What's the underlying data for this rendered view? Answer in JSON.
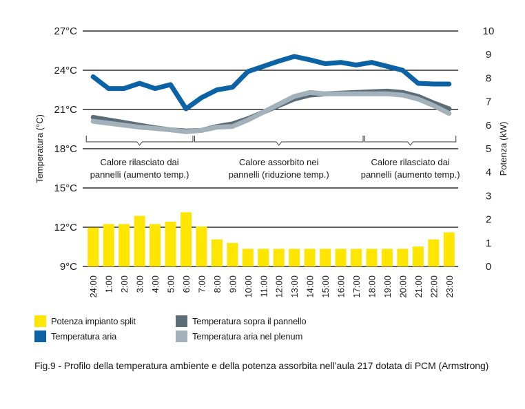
{
  "chart_data": {
    "type": "bar+line",
    "title": "",
    "caption": "Fig.9 - Profilo della temperatura ambiente e della potenza assorbita nell’aula 217 dotata di PCM (Armstrong)",
    "categories": [
      "24:00",
      "1:00",
      "2:00",
      "3:00",
      "4:00",
      "5:00",
      "6:00",
      "7:00",
      "8:00",
      "9:00",
      "10:00",
      "11:00",
      "12:00",
      "13:00",
      "14:00",
      "15:00",
      "16:00",
      "17:00",
      "18:00",
      "19:00",
      "20:00",
      "21:00",
      "22:00",
      "23:00"
    ],
    "y_left": {
      "label": "Temperatura (°C)",
      "range": [
        9,
        27
      ],
      "ticks": [
        27,
        24,
        21,
        18,
        15,
        12,
        9
      ],
      "tick_labels": [
        "27°C",
        "24°C",
        "21°C",
        "18°C",
        "15°C",
        "12°C",
        "9°C"
      ]
    },
    "y_right": {
      "label": "Potenza (kW)",
      "range": [
        0,
        10
      ],
      "ticks": [
        10,
        9,
        8,
        7,
        6,
        5,
        4,
        3,
        2,
        1,
        0
      ],
      "tick_labels": [
        "10",
        "9",
        "8",
        "7",
        "6",
        "5",
        "4",
        "3",
        "2",
        "1",
        "0"
      ]
    },
    "grid": true,
    "series": [
      {
        "name": "Potenza impianto split",
        "type": "bar",
        "axis": "right",
        "color": "#ffe600",
        "values": [
          1.65,
          1.8,
          1.8,
          2.15,
          1.8,
          1.9,
          2.3,
          1.7,
          1.15,
          1.0,
          0.75,
          0.75,
          0.75,
          0.75,
          0.75,
          0.75,
          0.75,
          0.75,
          0.75,
          0.75,
          0.75,
          0.85,
          1.15,
          1.45
        ]
      },
      {
        "name": "Temperatura sopra il pannello",
        "type": "line",
        "axis": "left",
        "color": "#5a6d78",
        "values": [
          20.4,
          20.2,
          20.0,
          19.8,
          19.6,
          19.45,
          19.35,
          19.4,
          19.7,
          19.9,
          20.3,
          20.8,
          21.3,
          21.8,
          22.1,
          22.2,
          22.25,
          22.3,
          22.35,
          22.4,
          22.3,
          22.0,
          21.5,
          21.05
        ]
      },
      {
        "name": "Temperatura aria nel plenum",
        "type": "line",
        "axis": "left",
        "color": "#a3b1ba",
        "values": [
          20.1,
          19.95,
          19.8,
          19.65,
          19.55,
          19.45,
          19.3,
          19.4,
          19.65,
          19.7,
          20.2,
          20.8,
          21.4,
          22.0,
          22.3,
          22.2,
          22.2,
          22.2,
          22.2,
          22.2,
          22.1,
          21.8,
          21.3,
          20.7
        ]
      },
      {
        "name": "Temperatura aria",
        "type": "line",
        "axis": "left",
        "color": "#0b62a4",
        "values": [
          23.5,
          22.6,
          22.6,
          23.0,
          22.6,
          22.9,
          21.05,
          21.9,
          22.5,
          22.7,
          23.9,
          24.3,
          24.7,
          25.05,
          24.8,
          24.5,
          24.6,
          24.4,
          24.6,
          24.3,
          24.0,
          23.0,
          22.95,
          22.95
        ]
      }
    ],
    "annotations": [
      {
        "from": "24:00",
        "to": "6:00",
        "line1": "Calore rilasciato dai",
        "line2": "pannelli (aumento temp.)"
      },
      {
        "from": "7:00",
        "to": "17:00",
        "line1": "Calore assorbito nei",
        "line2": "pannelli (riduzione temp.)"
      },
      {
        "from": "18:00",
        "to": "23:00",
        "line1": "Calore rilasciato dai",
        "line2": "pannelli (aumento temp.)"
      }
    ],
    "legend": {
      "placement": "bottom-left",
      "items": [
        {
          "label": "Potenza impianto split",
          "color": "#ffe600"
        },
        {
          "label": "Temperatura sopra il pannello",
          "color": "#5a6d78"
        },
        {
          "label": "Temperatura aria",
          "color": "#0b62a4"
        },
        {
          "label": "Temperatura aria nel plenum",
          "color": "#a3b1ba"
        }
      ]
    }
  }
}
